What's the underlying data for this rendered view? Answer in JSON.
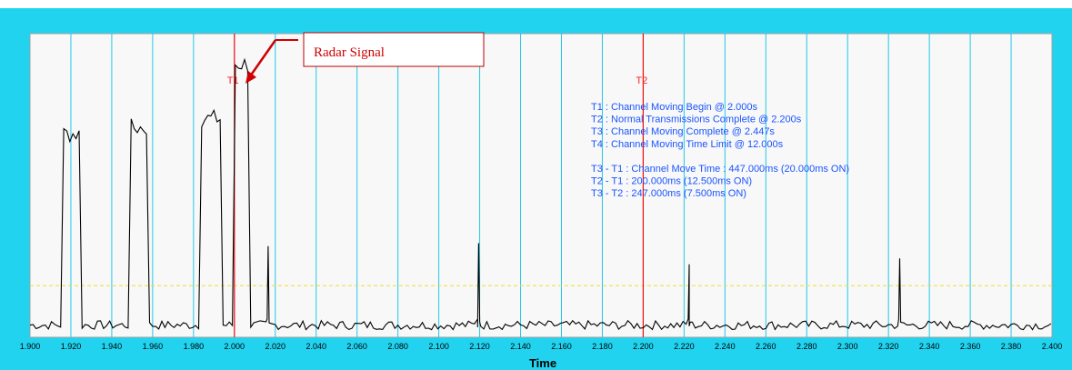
{
  "chart_data": {
    "type": "line",
    "title": "",
    "xlabel": "Time",
    "ylabel": "",
    "xlim": [
      1.9,
      2.4
    ],
    "ylim": [
      0,
      1
    ],
    "grid": true,
    "x_ticks": [
      "1.900",
      "1.920",
      "1.940",
      "1.960",
      "1.980",
      "2.000",
      "2.020",
      "2.040",
      "2.060",
      "2.080",
      "2.100",
      "2.120",
      "2.140",
      "2.160",
      "2.180",
      "2.200",
      "2.220",
      "2.240",
      "2.260",
      "2.280",
      "2.300",
      "2.320",
      "2.340",
      "2.360",
      "2.380",
      "2.400"
    ],
    "threshold": 0.17,
    "markers": [
      {
        "label": "T1",
        "x": 2.0
      },
      {
        "label": "T2",
        "x": 2.2
      }
    ],
    "info_lines": [
      "T1 : Channel Moving Begin @ 2.000s",
      "T2 : Normal Transmissions Complete @ 2.200s",
      "T3 : Channel Moving Complete @ 2.447s",
      "T4 : Channel Moving Time Limit @ 12.000s",
      "",
      "T3 - T1 : Channel Move Time : 447.000ms (20.000ms ON)",
      "T2 - T1 : 200.000ms (12.500ms ON)",
      "T3 - T2 : 247.000ms (7.500ms ON)"
    ],
    "annotation": {
      "text": "Radar Signal",
      "points_to_x": 2.004
    },
    "bursts": [
      {
        "start": 1.9155,
        "end": 1.9255,
        "level": 0.67
      },
      {
        "start": 1.9485,
        "end": 1.9585,
        "level": 0.69
      },
      {
        "start": 1.9835,
        "end": 1.9935,
        "level": 0.72
      },
      {
        "start": 2.0,
        "end": 2.0075,
        "level": 0.9
      }
    ],
    "spikes": [
      {
        "x": 2.0165,
        "level": 0.3
      },
      {
        "x": 2.1195,
        "level": 0.31
      },
      {
        "x": 2.2225,
        "level": 0.24
      },
      {
        "x": 2.3255,
        "level": 0.26
      }
    ],
    "noise_level": 0.04
  }
}
